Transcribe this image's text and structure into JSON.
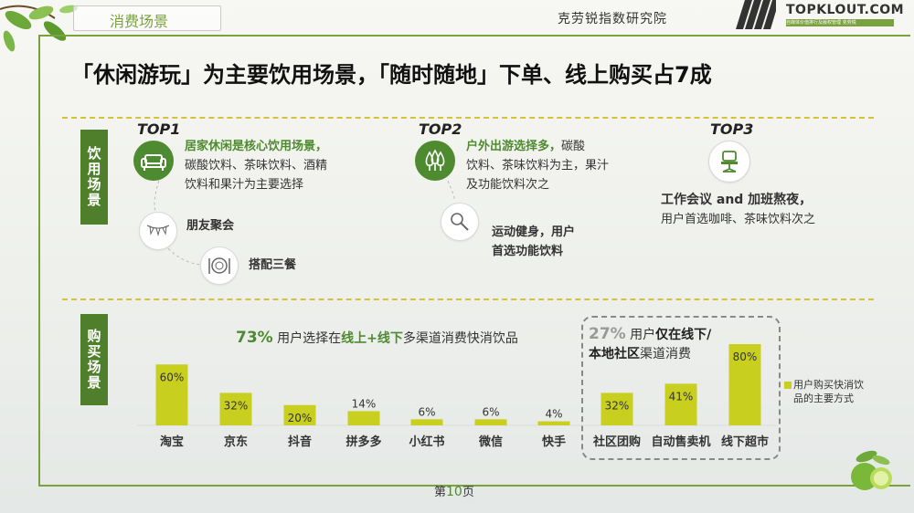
{
  "header": {
    "section": "消费场景",
    "institute": "克劳锐指数研究院",
    "logo": "TOPKLOUT.COM",
    "logo_sub": "自媒体价值排行及版权管理 克劳锐"
  },
  "title": "「休闲游玩」为主要饮用场景，「随时随地」下单、线上购买占7成",
  "scene_section": {
    "tab": "饮用场景",
    "top1": {
      "tag": "TOP1",
      "head": "居家休闲是核心饮用场景，",
      "body1": "碳酸饮料、茶味饮料、酒精",
      "body2": "饮料和果汁为主要选择",
      "sub1": "朋友聚会",
      "sub2": "搭配三餐",
      "icons": [
        "sofa-icon",
        "bunting-icon",
        "plate-icon"
      ]
    },
    "top2": {
      "tag": "TOP2",
      "head": "户外出游选择多，",
      "head_tail": "碳酸",
      "body1": "饮料、茶味饮料为主，果汁",
      "body2": "及功能饮料次之",
      "sub1": "运动健身，用户",
      "sub2": "首选功能饮料",
      "icons": [
        "trees-icon",
        "racket-icon"
      ]
    },
    "top3": {
      "tag": "TOP3",
      "head": "工作会议 and 加班熬夜，",
      "body": "用户首选咖啡、茶味饮料次之",
      "icons": [
        "office-chair-icon"
      ]
    }
  },
  "purchase_section": {
    "tab": "购买场景",
    "note1_pct": "73%",
    "note1_a": "用户选择在",
    "note1_b": "线上+线下",
    "note1_c": "多渠道消费快消饮品",
    "note2_pct": "27%",
    "note2_a": "用户",
    "note2_b": "仅在线下/",
    "note2_c": "本地社区",
    "note2_d": "渠道消费",
    "legend": "用户购买快消饮品的主要方式"
  },
  "chart_data": {
    "type": "bar",
    "categories": [
      "淘宝",
      "京东",
      "抖音",
      "拼多多",
      "小红书",
      "微信",
      "快手",
      "社区团购",
      "自动售卖机",
      "线下超市"
    ],
    "values": [
      60,
      32,
      20,
      14,
      6,
      6,
      4,
      32,
      41,
      80
    ],
    "value_labels": [
      "60%",
      "32%",
      "20%",
      "14%",
      "6%",
      "6%",
      "4%",
      "32%",
      "41%",
      "80%"
    ],
    "unit": "%",
    "series": [
      {
        "name": "用户购买快消饮品的主要方式",
        "values": [
          60,
          32,
          20,
          14,
          6,
          6,
          4,
          32,
          41,
          80
        ]
      }
    ],
    "bar_color": "#c9cf1e",
    "legend": "right",
    "grid": false
  },
  "footer": {
    "page_prefix": "第",
    "page_number": "10",
    "page_suffix": "页"
  },
  "colors": {
    "brand_green": "#4e8a2f",
    "bar_yellow": "#c9cf1e",
    "frame_green": "#7aa23c"
  }
}
